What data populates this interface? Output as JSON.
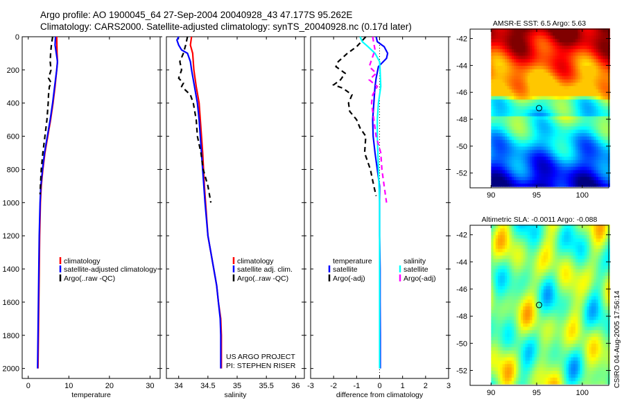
{
  "title_line1": "Argo profile: AO 1900045_64 27-Sep-2004 20040928_43 47.177S 95.262E",
  "title_line2": "Climatology: CARS2000. Satellite-adjusted climatology: synTS_20040928.nc (0.17d later)",
  "credit_line1": "US ARGO PROJECT",
  "credit_line2": "PI: STEPHEN RISER",
  "footer": "CSIRO 04-Aug-2005 17:56:14",
  "colors": {
    "climatology": "#ff0000",
    "satellite": "#0000ff",
    "argo": "#000000",
    "sal_satellite": "#00ffff",
    "sal_argo": "#ff00ff"
  },
  "chart_data": [
    {
      "type": "line",
      "xlabel": "temperature",
      "ylabel": "",
      "xlim": [
        -1.5,
        32.5
      ],
      "ylim": [
        2060,
        0
      ],
      "xticks": [
        0,
        10,
        20,
        30
      ],
      "yticks": [
        0,
        200,
        400,
        600,
        800,
        1000,
        1200,
        1400,
        1600,
        1800,
        2000
      ],
      "legend": [
        "climatology",
        "satellite-adjusted climatology",
        "Argo(..raw -QC)"
      ],
      "series": [
        {
          "name": "climatology",
          "color": "#ff0000",
          "p": [
            0,
            100,
            150,
            200,
            300,
            400,
            500,
            600,
            700,
            800,
            900,
            1000,
            1200,
            1400,
            1600,
            1800,
            2000
          ],
          "v": [
            7.0,
            7.1,
            7.2,
            7.0,
            6.6,
            6.1,
            5.5,
            4.8,
            4.1,
            3.6,
            3.2,
            3.0,
            2.8,
            2.7,
            2.6,
            2.5,
            2.4
          ]
        },
        {
          "name": "satellite-adjusted climatology",
          "color": "#0000ff",
          "p": [
            0,
            50,
            100,
            150,
            200,
            300,
            400,
            500,
            600,
            700,
            800,
            900,
            1000,
            1200,
            1400,
            1600,
            1800,
            2000
          ],
          "v": [
            6.7,
            6.6,
            6.9,
            7.2,
            7.0,
            6.5,
            6.0,
            5.4,
            4.7,
            4.0,
            3.5,
            3.1,
            2.9,
            2.7,
            2.6,
            2.5,
            2.4,
            2.3
          ]
        },
        {
          "name": "Argo(..raw -QC)",
          "color": "#000000",
          "dash": true,
          "p": [
            0,
            50,
            100,
            150,
            200,
            250,
            280,
            300,
            350,
            400,
            500,
            600,
            700,
            800,
            900,
            950
          ],
          "v": [
            6.0,
            5.7,
            5.5,
            5.4,
            5.6,
            5.0,
            5.7,
            5.2,
            5.0,
            4.9,
            4.6,
            4.1,
            3.6,
            3.2,
            3.0,
            2.9
          ]
        }
      ]
    },
    {
      "type": "line",
      "xlabel": "salinity",
      "ylabel": "",
      "xlim": [
        33.79,
        36.15
      ],
      "ylim": [
        2060,
        0
      ],
      "xticks": [
        34,
        34.5,
        35,
        35.5,
        36
      ],
      "yticks": [
        0,
        200,
        400,
        600,
        800,
        1000,
        1200,
        1400,
        1600,
        1800,
        2000
      ],
      "legend": [
        "climatology",
        "satellite adj. clim.",
        "Argo(..raw -QC)"
      ],
      "series": [
        {
          "name": "climatology",
          "color": "#ff0000",
          "p": [
            0,
            50,
            100,
            200,
            300,
            400,
            500,
            700,
            900,
            1000,
            1200,
            1300,
            1400,
            1500,
            1600,
            1700,
            1800,
            2000
          ],
          "v": [
            34.22,
            34.2,
            34.24,
            34.26,
            34.3,
            34.35,
            34.37,
            34.41,
            34.44,
            34.46,
            34.5,
            34.55,
            34.6,
            34.65,
            34.68,
            34.72,
            34.73,
            34.73
          ]
        },
        {
          "name": "satellite adj. clim.",
          "color": "#0000ff",
          "p": [
            0,
            20,
            50,
            80,
            100,
            150,
            200,
            300,
            400,
            500,
            700,
            900,
            1000,
            1200,
            1300,
            1400,
            1500,
            1600,
            1700,
            1800,
            2000
          ],
          "v": [
            34.0,
            33.97,
            34.0,
            34.05,
            34.15,
            34.2,
            34.22,
            34.27,
            34.32,
            34.35,
            34.39,
            34.43,
            34.45,
            34.5,
            34.55,
            34.6,
            34.65,
            34.68,
            34.71,
            34.72,
            34.72
          ]
        },
        {
          "name": "Argo(..raw -QC)",
          "color": "#000000",
          "dash": true,
          "p": [
            0,
            50,
            100,
            150,
            200,
            250,
            280,
            300,
            350,
            400,
            500,
            600,
            700,
            800,
            900,
            1000
          ],
          "v": [
            34.15,
            34.12,
            34.08,
            34.02,
            34.05,
            34.0,
            34.08,
            34.05,
            34.2,
            34.25,
            34.3,
            34.32,
            34.38,
            34.42,
            34.5,
            34.55
          ]
        }
      ]
    },
    {
      "type": "line",
      "xlabel": "difference from climatology",
      "ylabel": "",
      "xlim": [
        -3,
        3
      ],
      "ylim": [
        2060,
        0
      ],
      "xticks": [
        -3,
        -2,
        -1,
        0,
        1,
        2,
        3
      ],
      "yticks": [
        0,
        200,
        400,
        600,
        800,
        1000,
        1200,
        1400,
        1600,
        1800,
        2000
      ],
      "legend_temperature": {
        "title": "temperature",
        "items": [
          "satellite",
          "Argo(-adj)"
        ]
      },
      "legend_salinity": {
        "title": "salinity",
        "items": [
          "satellite",
          "Argo(-adj)"
        ]
      },
      "series": [
        {
          "name": "temperature satellite",
          "color": "#0000ff",
          "p": [
            0,
            30,
            60,
            100,
            130,
            180,
            250,
            300,
            400,
            500,
            600,
            700,
            800,
            900,
            1000,
            1200,
            1400,
            1600,
            1800,
            2000
          ],
          "v": [
            -0.15,
            -0.1,
            0.2,
            0.35,
            0.3,
            -0.05,
            -0.15,
            -0.2,
            -0.25,
            -0.3,
            -0.28,
            -0.2,
            -0.1,
            0.0,
            0.0,
            0.0,
            0.02,
            0.02,
            0.03,
            0.03
          ]
        },
        {
          "name": "temperature Argo(-adj)",
          "color": "#000000",
          "dash": true,
          "p": [
            0,
            30,
            60,
            100,
            150,
            180,
            220,
            260,
            290,
            310,
            350,
            400,
            450,
            500,
            550,
            600,
            700,
            800,
            900,
            960
          ],
          "v": [
            -0.6,
            -0.8,
            -1.0,
            -1.4,
            -1.8,
            -1.9,
            -1.5,
            -1.7,
            -2.0,
            -1.6,
            -1.2,
            -1.35,
            -1.3,
            -1.0,
            -0.85,
            -0.6,
            -0.65,
            -0.4,
            -0.25,
            -0.15
          ]
        },
        {
          "name": "salinity satellite",
          "color": "#00ffff",
          "p": [
            0,
            30,
            60,
            100,
            150,
            200,
            300,
            400,
            500,
            600,
            800,
            1000,
            1200,
            1400,
            1600,
            1800,
            2000
          ],
          "v": [
            -0.85,
            -0.75,
            -0.5,
            -0.2,
            0.0,
            0.02,
            0.05,
            -0.05,
            -0.1,
            -0.1,
            -0.05,
            0.0,
            0.0,
            0.0,
            0.0,
            0.0,
            0.0
          ]
        },
        {
          "name": "salinity Argo(-adj)",
          "color": "#ff00ff",
          "dash": true,
          "p": [
            0,
            40,
            80,
            120,
            180,
            220,
            260,
            300,
            350,
            400,
            500,
            600,
            700,
            800,
            900,
            1000
          ],
          "v": [
            -0.3,
            -0.25,
            -0.2,
            -0.3,
            -0.45,
            -0.15,
            -0.45,
            -0.1,
            -0.3,
            -0.35,
            -0.25,
            -0.15,
            0.05,
            0.1,
            0.2,
            0.3
          ]
        }
      ]
    },
    {
      "type": "heatmap",
      "title": "AMSR-E SST: 6.5 Argo: 5.63",
      "xlim": [
        87.7,
        102.9
      ],
      "ylim": [
        -53.1,
        -41.3
      ],
      "xticks": [
        90,
        95,
        100
      ],
      "yticks": [
        -42,
        -44,
        -46,
        -48,
        -50,
        -52
      ],
      "marker": {
        "lon": 95.262,
        "lat": -47.177
      }
    },
    {
      "type": "heatmap",
      "title": "Altimetric SLA: -0.0011 Argo: -0.088",
      "xlim": [
        87.7,
        102.9
      ],
      "ylim": [
        -53.1,
        -41.3
      ],
      "xticks": [
        90,
        95,
        100
      ],
      "yticks": [
        -42,
        -44,
        -46,
        -48,
        -50,
        -52
      ],
      "marker": {
        "lon": 95.262,
        "lat": -47.177
      }
    }
  ]
}
